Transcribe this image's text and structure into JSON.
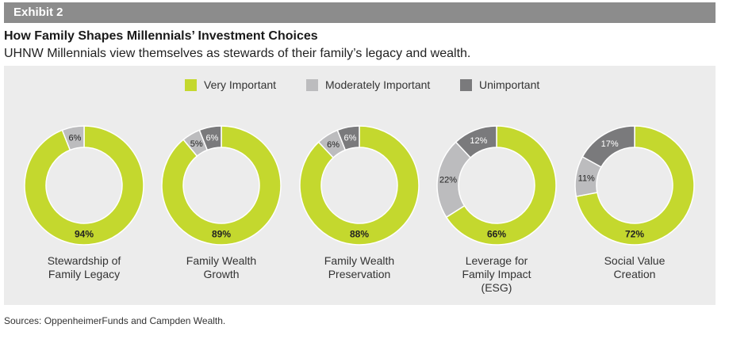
{
  "header": {
    "exhibit": "Exhibit 2",
    "title": "How Family Shapes Millennials’ Investment Choices",
    "subtitle": "UHNW Millennials view themselves as stewards of their family’s legacy and wealth."
  },
  "source": "Sources: OppenheimerFunds and Campden Wealth.",
  "colors": {
    "very_important": "#c4d82e",
    "moderately_important": "#bcbcbe",
    "unimportant": "#7a7a7c",
    "panel": "#ececec",
    "header_bar": "#8c8c8c"
  },
  "legend": {
    "very_important": "Very Important",
    "moderately_important": "Moderately Important",
    "unimportant": "Unimportant"
  },
  "chart_data": {
    "type": "pie",
    "variant": "donut",
    "legend_position": "top-center",
    "series_names": [
      "Very Important",
      "Moderately Important",
      "Unimportant"
    ],
    "charts": [
      {
        "category": "Stewardship of\nFamily Legacy",
        "very_important": 94,
        "moderately_important": 6,
        "unimportant": 0,
        "labels": {
          "very_important": "94%",
          "moderately_important": "6%"
        }
      },
      {
        "category": "Family Wealth\nGrowth",
        "very_important": 89,
        "moderately_important": 5,
        "unimportant": 6,
        "labels": {
          "very_important": "89%",
          "moderately_important": "5%",
          "unimportant": "6%"
        }
      },
      {
        "category": "Family Wealth\nPreservation",
        "very_important": 88,
        "moderately_important": 6,
        "unimportant": 6,
        "labels": {
          "very_important": "88%",
          "moderately_important": "6%",
          "unimportant": "6%"
        }
      },
      {
        "category": "Leverage for\nFamily Impact\n(ESG)",
        "very_important": 66,
        "moderately_important": 22,
        "unimportant": 12,
        "labels": {
          "very_important": "66%",
          "moderately_important": "22%",
          "unimportant": "12%"
        }
      },
      {
        "category": "Social Value\nCreation",
        "very_important": 72,
        "moderately_important": 11,
        "unimportant": 17,
        "labels": {
          "very_important": "72%",
          "moderately_important": "11%",
          "unimportant": "17%"
        }
      }
    ]
  }
}
